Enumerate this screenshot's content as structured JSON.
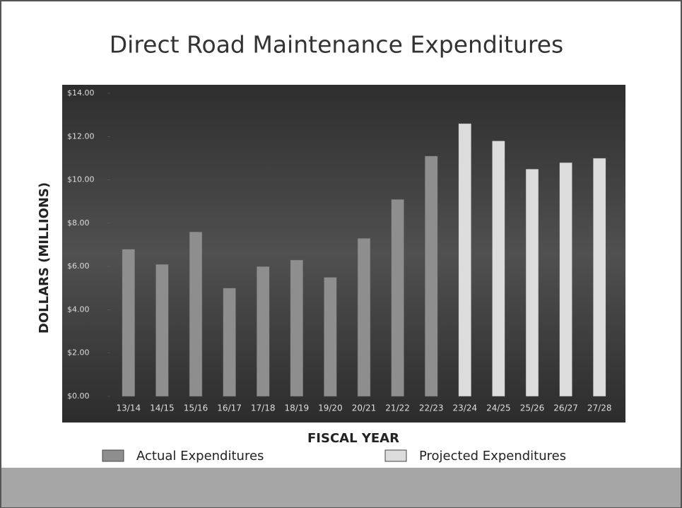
{
  "chart_data": {
    "type": "bar",
    "title": "Direct Road Maintenance Expenditures",
    "x_label": "FISCAL YEAR",
    "y_label": "DOLLARS (MILLIONS)",
    "categories": [
      "13/14",
      "14/15",
      "15/16",
      "16/17",
      "17/18",
      "18/19",
      "19/20",
      "20/21",
      "21/22",
      "22/23",
      "23/24",
      "24/25",
      "25/26",
      "26/27",
      "27/28"
    ],
    "series": [
      {
        "name": "Actual Expenditures",
        "color": "#8e8e8e",
        "values": [
          6.8,
          6.1,
          7.6,
          5.0,
          6.0,
          6.3,
          5.5,
          7.3,
          9.1,
          11.1,
          null,
          null,
          null,
          null,
          null
        ]
      },
      {
        "name": "Projected Expenditures",
        "color": "#dcdcdc",
        "values": [
          null,
          null,
          null,
          null,
          null,
          null,
          null,
          null,
          null,
          null,
          12.6,
          11.8,
          10.5,
          10.8,
          11.0
        ]
      }
    ],
    "ylim": [
      0,
      14
    ],
    "yticks": [
      {
        "value": 0,
        "label": "$0.00"
      },
      {
        "value": 2,
        "label": "$2.00"
      },
      {
        "value": 4,
        "label": "$4.00"
      },
      {
        "value": 6,
        "label": "$6.00"
      },
      {
        "value": 8,
        "label": "$8.00"
      },
      {
        "value": 10,
        "label": "$10.00"
      },
      {
        "value": 12,
        "label": "$12.00"
      },
      {
        "value": 14,
        "label": "$14.00"
      }
    ],
    "grid": false
  }
}
